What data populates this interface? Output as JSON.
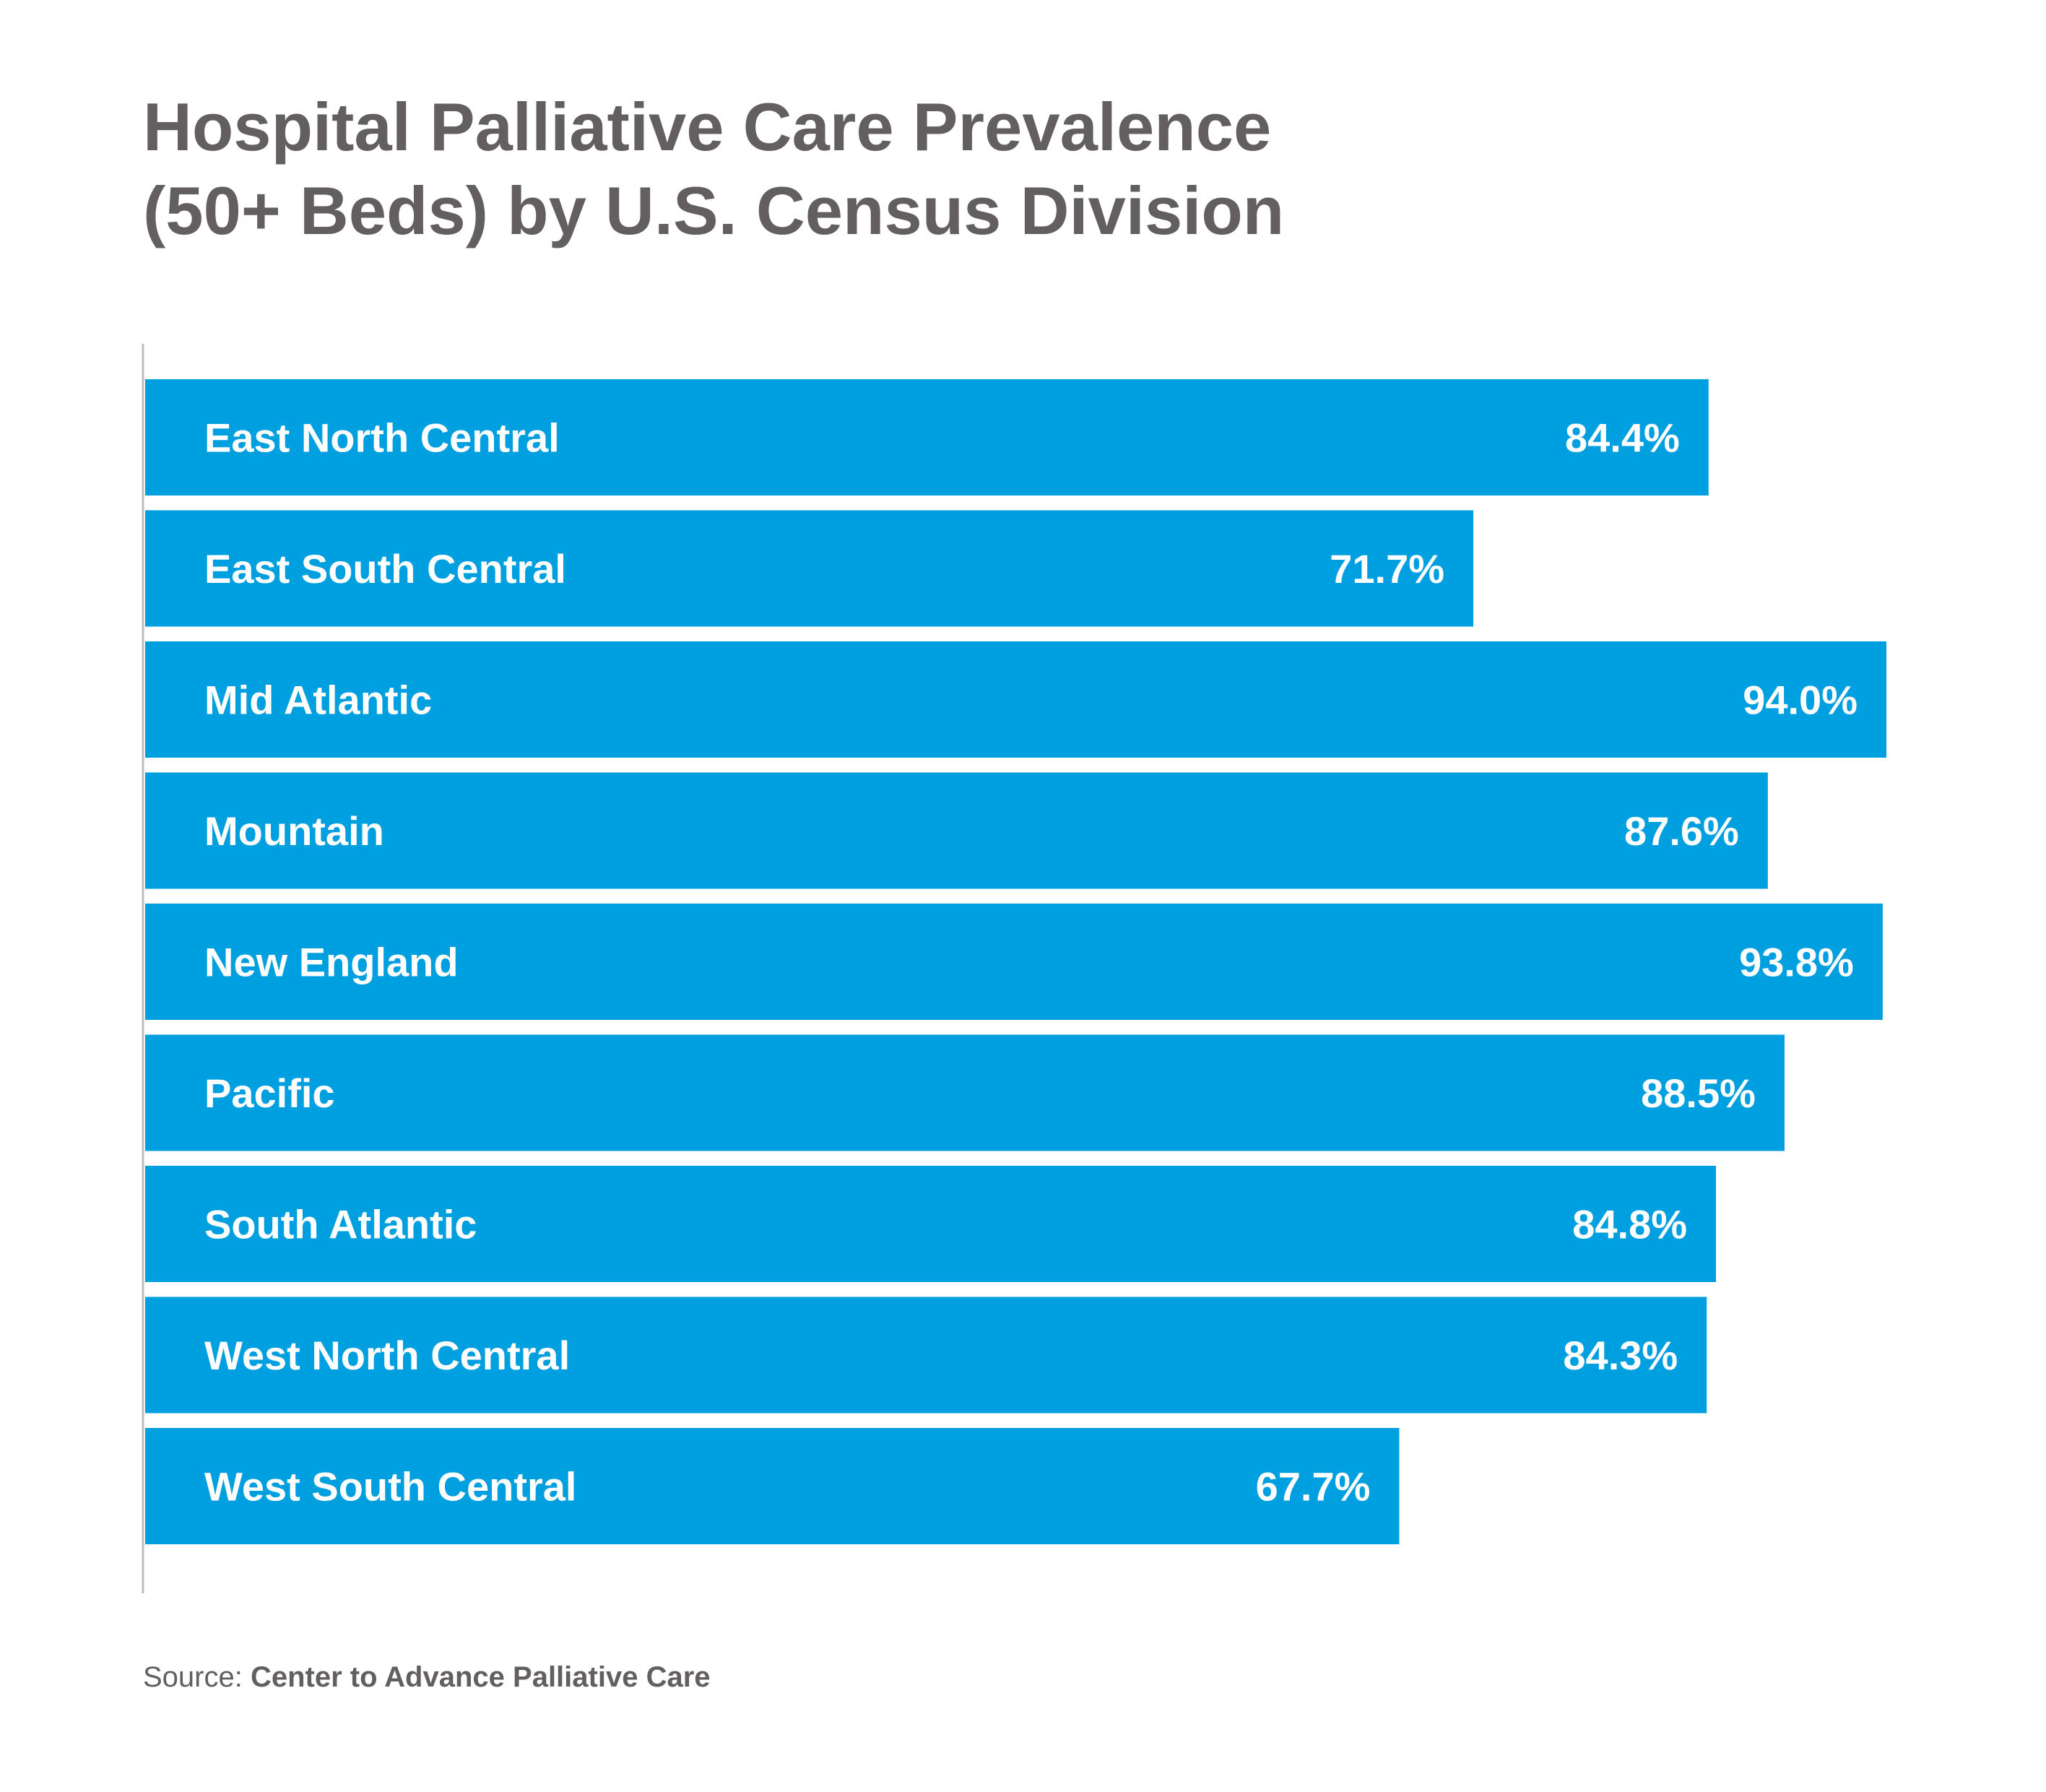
{
  "chart_data": {
    "type": "bar",
    "orientation": "horizontal",
    "title": "Hospital Palliative Care Prevalence (50+ Beds) by U.S. Census Division",
    "title_lines": [
      "Hospital Palliative Care Prevalence",
      "(50+ Beds) by U.S. Census Division"
    ],
    "categories": [
      "East North Central",
      "East South Central",
      "Mid Atlantic",
      "Mountain",
      "New England",
      "Pacific",
      "South Atlantic",
      "West North Central",
      "West South Central"
    ],
    "values": [
      84.4,
      71.7,
      94.0,
      87.6,
      93.8,
      88.5,
      84.8,
      84.3,
      67.7
    ],
    "value_labels": [
      "84.4%",
      "71.7%",
      "94.0%",
      "87.6%",
      "93.8%",
      "88.5%",
      "84.8%",
      "84.3%",
      "67.7%"
    ],
    "unit": "%",
    "xlim": [
      0,
      100
    ],
    "grid": false,
    "legend": "none",
    "bar_color": "#009fdf",
    "label_color": "#ffffff",
    "axis_color": "#bdbdbd"
  },
  "source": {
    "prefix": "Source: ",
    "name": "Center to Advance Palliative Care"
  },
  "colors": {
    "title": "#635e5f",
    "background": "#ffffff"
  }
}
